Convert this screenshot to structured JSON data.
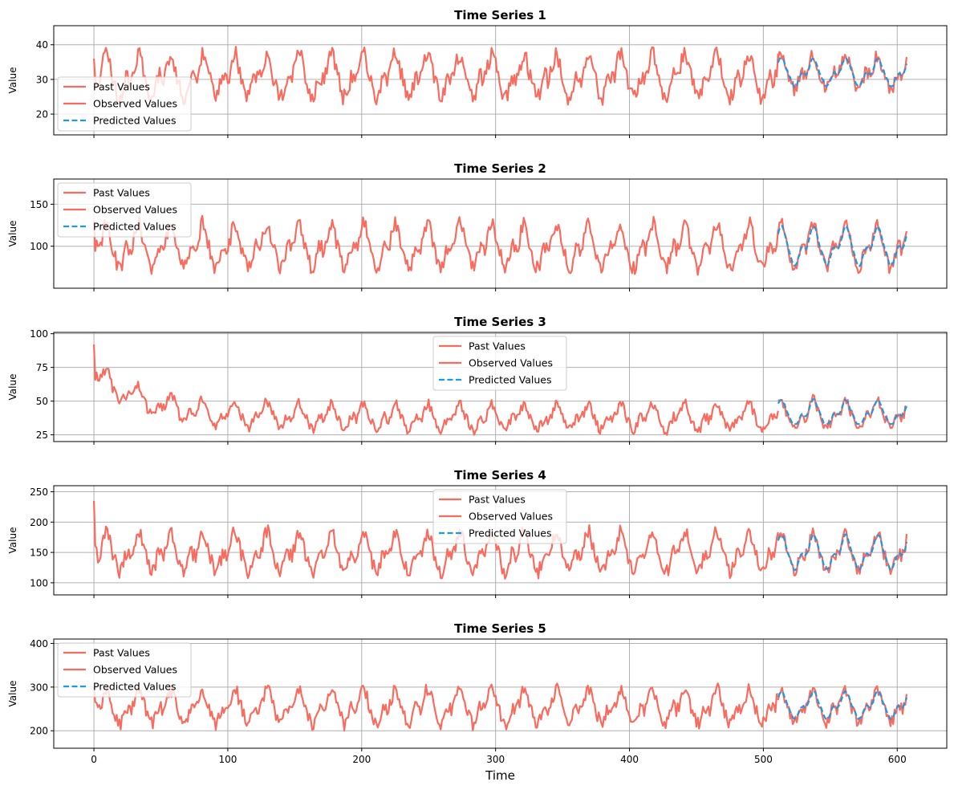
{
  "colors": {
    "past": "#f96b5e",
    "observed": "#f96b5e",
    "predicted": "#1a9ae8"
  },
  "chart_data": [
    {
      "type": "line",
      "title": "Time Series 1",
      "ylabel": "Value",
      "xlabel": "",
      "xlim": [
        -30,
        637
      ],
      "ylim": [
        14,
        45.5
      ],
      "xticks": [
        0,
        100,
        200,
        300,
        400,
        500,
        600
      ],
      "xticklabels": [
        "",
        "",
        "",
        "",
        "",
        "",
        ""
      ],
      "yticks": [
        20,
        30,
        40
      ],
      "yticklabels": [
        "20",
        "30",
        "40"
      ],
      "grid": true,
      "legend": {
        "loc": "lower left",
        "entries": [
          "Past Values",
          "Observed Values",
          "Predicted Values"
        ]
      },
      "series": [
        {
          "name": "Past Values",
          "style": "solid",
          "x_start": 0,
          "x_end": 511,
          "period": 24,
          "baseline": 31,
          "amplitude": 9,
          "noise": 2.5,
          "min": 20,
          "max": 43.5,
          "start_value": 36,
          "seed": 11
        },
        {
          "name": "Observed Values",
          "style": "solid",
          "x_start": 511,
          "x_end": 607,
          "period": 24,
          "baseline": 32,
          "amplitude": 7,
          "noise": 2,
          "min": 25,
          "max": 43.5,
          "seed": 12
        },
        {
          "name": "Predicted Values",
          "style": "dashed",
          "x_start": 511,
          "x_end": 607,
          "period": 24,
          "baseline": 32,
          "amplitude": 6,
          "noise": 1,
          "min": 26,
          "max": 40,
          "seed": 12,
          "smooth": true
        }
      ]
    },
    {
      "type": "line",
      "title": "Time Series 2",
      "ylabel": "Value",
      "xlabel": "",
      "xlim": [
        -30,
        637
      ],
      "ylim": [
        50,
        180
      ],
      "xticks": [
        0,
        100,
        200,
        300,
        400,
        500,
        600
      ],
      "xticklabels": [
        "",
        "",
        "",
        "",
        "",
        "",
        ""
      ],
      "yticks": [
        100,
        150
      ],
      "yticklabels": [
        "100",
        "150"
      ],
      "grid": true,
      "legend": {
        "loc": "upper left",
        "entries": [
          "Past Values",
          "Observed Values",
          "Predicted Values"
        ]
      },
      "series": [
        {
          "name": "Past Values",
          "style": "solid",
          "x_start": 0,
          "x_end": 511,
          "period": 24,
          "baseline": 100,
          "amplitude": 38,
          "noise": 9,
          "min": 60,
          "max": 165,
          "start_value": 130,
          "seed": 21
        },
        {
          "name": "Observed Values",
          "style": "solid",
          "x_start": 511,
          "x_end": 607,
          "period": 24,
          "baseline": 100,
          "amplitude": 38,
          "noise": 8,
          "min": 68,
          "max": 172,
          "seed": 22
        },
        {
          "name": "Predicted Values",
          "style": "dashed",
          "x_start": 511,
          "x_end": 607,
          "period": 24,
          "baseline": 100,
          "amplitude": 34,
          "noise": 3,
          "min": 72,
          "max": 152,
          "seed": 22,
          "smooth": true
        }
      ]
    },
    {
      "type": "line",
      "title": "Time Series 3",
      "ylabel": "Value",
      "xlabel": "",
      "xlim": [
        -30,
        637
      ],
      "ylim": [
        20,
        101
      ],
      "xticks": [
        0,
        100,
        200,
        300,
        400,
        500,
        600
      ],
      "xticklabels": [
        "",
        "",
        "",
        "",
        "",
        "",
        ""
      ],
      "yticks": [
        25,
        50,
        75,
        100
      ],
      "yticklabels": [
        "25",
        "50",
        "75",
        "100"
      ],
      "grid": true,
      "legend": {
        "loc": "upper center",
        "entries": [
          "Past Values",
          "Observed Values",
          "Predicted Values"
        ]
      },
      "series": [
        {
          "name": "Past Values",
          "style": "solid",
          "x_start": 0,
          "x_end": 511,
          "period": 24,
          "baseline": 38,
          "amplitude": 14,
          "noise": 4,
          "min": 23,
          "max": 98,
          "start_value": 92,
          "trend_start": 32,
          "trend_decay": 40,
          "seed": 31
        },
        {
          "name": "Observed Values",
          "style": "solid",
          "x_start": 511,
          "x_end": 607,
          "period": 24,
          "baseline": 40,
          "amplitude": 15,
          "noise": 4,
          "min": 30,
          "max": 81,
          "seed": 32
        },
        {
          "name": "Predicted Values",
          "style": "dashed",
          "x_start": 511,
          "x_end": 607,
          "period": 24,
          "baseline": 41,
          "amplitude": 14,
          "noise": 2,
          "min": 33,
          "max": 64,
          "seed": 32,
          "smooth": true
        }
      ]
    },
    {
      "type": "line",
      "title": "Time Series 4",
      "ylabel": "Value",
      "xlabel": "",
      "xlim": [
        -30,
        637
      ],
      "ylim": [
        80,
        260
      ],
      "xticks": [
        0,
        100,
        200,
        300,
        400,
        500,
        600
      ],
      "xticklabels": [
        "",
        "",
        "",
        "",
        "",
        "",
        ""
      ],
      "yticks": [
        100,
        150,
        200,
        250
      ],
      "yticklabels": [
        "100",
        "150",
        "200",
        "250"
      ],
      "grid": true,
      "legend": {
        "loc": "upper center",
        "entries": [
          "Past Values",
          "Observed Values",
          "Predicted Values"
        ]
      },
      "series": [
        {
          "name": "Past Values",
          "style": "solid",
          "x_start": 0,
          "x_end": 511,
          "period": 24,
          "baseline": 150,
          "amplitude": 48,
          "noise": 12,
          "min": 88,
          "max": 250,
          "start_value": 235,
          "seed": 41
        },
        {
          "name": "Observed Values",
          "style": "solid",
          "x_start": 511,
          "x_end": 607,
          "period": 24,
          "baseline": 150,
          "amplitude": 45,
          "noise": 10,
          "min": 95,
          "max": 225,
          "seed": 42
        },
        {
          "name": "Predicted Values",
          "style": "dashed",
          "x_start": 511,
          "x_end": 607,
          "period": 24,
          "baseline": 150,
          "amplitude": 42,
          "noise": 4,
          "min": 105,
          "max": 205,
          "seed": 42,
          "smooth": true
        }
      ]
    },
    {
      "type": "line",
      "title": "Time Series 5",
      "ylabel": "Value",
      "xlabel": "Time",
      "xlim": [
        -30,
        637
      ],
      "ylim": [
        160,
        410
      ],
      "xticks": [
        0,
        100,
        200,
        300,
        400,
        500,
        600
      ],
      "xticklabels": [
        "0",
        "100",
        "200",
        "300",
        "400",
        "500",
        "600"
      ],
      "yticks": [
        200,
        300,
        400
      ],
      "yticklabels": [
        "200",
        "300",
        "400"
      ],
      "grid": true,
      "legend": {
        "loc": "upper left",
        "entries": [
          "Past Values",
          "Observed Values",
          "Predicted Values"
        ]
      },
      "series": [
        {
          "name": "Past Values",
          "style": "solid",
          "x_start": 0,
          "x_end": 511,
          "period": 24,
          "baseline": 255,
          "amplitude": 55,
          "noise": 16,
          "min": 172,
          "max": 398,
          "start_value": 300,
          "seed": 51
        },
        {
          "name": "Observed Values",
          "style": "solid",
          "x_start": 511,
          "x_end": 607,
          "period": 24,
          "baseline": 255,
          "amplitude": 50,
          "noise": 14,
          "min": 180,
          "max": 335,
          "seed": 52
        },
        {
          "name": "Predicted Values",
          "style": "dashed",
          "x_start": 511,
          "x_end": 607,
          "period": 24,
          "baseline": 258,
          "amplitude": 45,
          "noise": 6,
          "min": 190,
          "max": 310,
          "seed": 52,
          "smooth": true
        }
      ]
    }
  ]
}
